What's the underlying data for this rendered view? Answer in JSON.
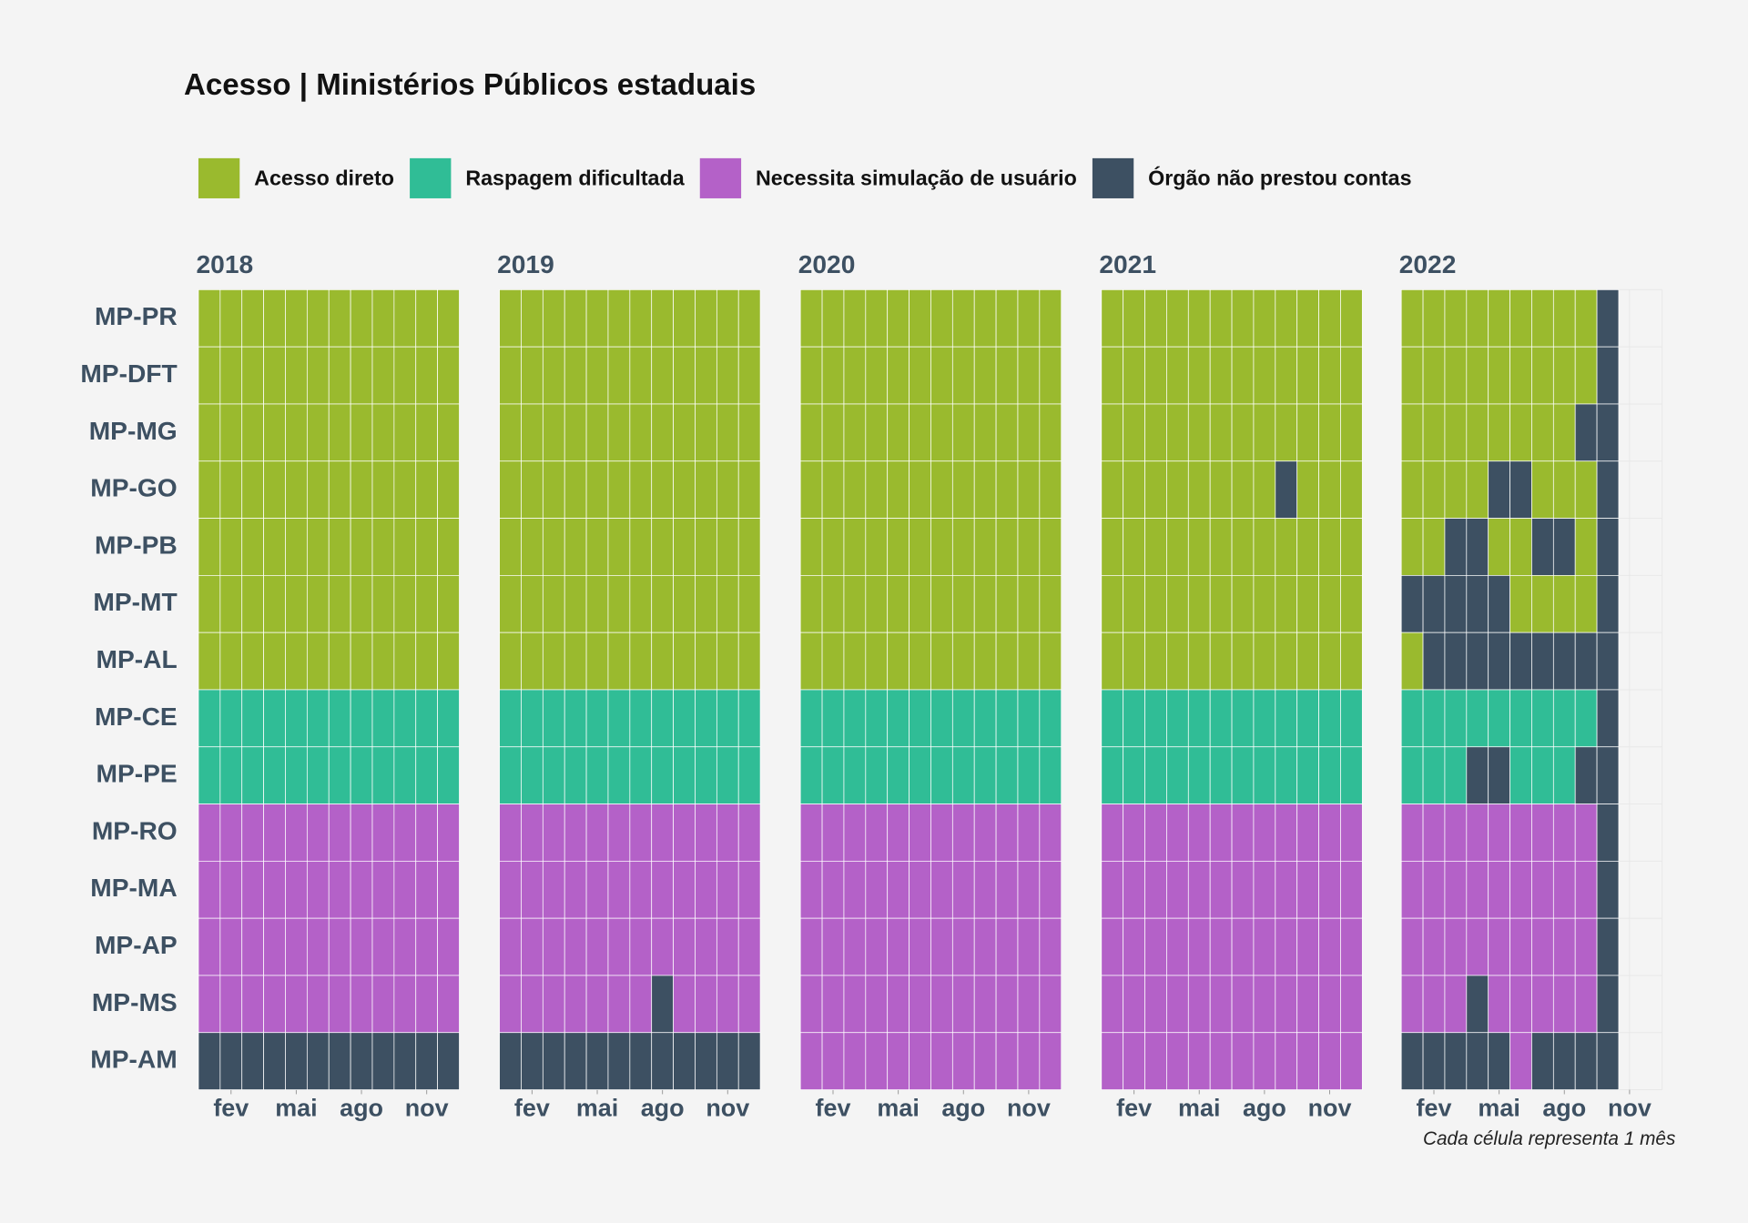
{
  "chart_data": {
    "type": "heatmap",
    "title": "Acesso | Ministérios Públicos estaduais",
    "caption": "Cada célula representa 1 mês",
    "legend": [
      {
        "name": "Acesso direto",
        "color": "#9aba2e"
      },
      {
        "name": "Raspagem dificultada",
        "color": "#30bd96"
      },
      {
        "name": "Necessita simulação de usuário",
        "color": "#b461c8"
      },
      {
        "name": "Órgão não prestou contas",
        "color": "#3d5062"
      }
    ],
    "rows": [
      "MP-PR",
      "MP-DFT",
      "MP-MG",
      "MP-GO",
      "MP-PB",
      "MP-MT",
      "MP-AL",
      "MP-CE",
      "MP-PE",
      "MP-RO",
      "MP-MA",
      "MP-AP",
      "MP-MS",
      "MP-AM"
    ],
    "xlim": [
      0.5,
      12.5
    ],
    "xticks": [
      {
        "value": 2,
        "label": "fev"
      },
      {
        "value": 5,
        "label": "mai"
      },
      {
        "value": 8,
        "label": "ago"
      },
      {
        "value": 11,
        "label": "nov"
      }
    ],
    "facets": [
      {
        "name": "2018",
        "values": [
          [
            0,
            0,
            0,
            0,
            0,
            0,
            0,
            0,
            0,
            0,
            0,
            0
          ],
          [
            0,
            0,
            0,
            0,
            0,
            0,
            0,
            0,
            0,
            0,
            0,
            0
          ],
          [
            0,
            0,
            0,
            0,
            0,
            0,
            0,
            0,
            0,
            0,
            0,
            0
          ],
          [
            0,
            0,
            0,
            0,
            0,
            0,
            0,
            0,
            0,
            0,
            0,
            0
          ],
          [
            0,
            0,
            0,
            0,
            0,
            0,
            0,
            0,
            0,
            0,
            0,
            0
          ],
          [
            0,
            0,
            0,
            0,
            0,
            0,
            0,
            0,
            0,
            0,
            0,
            0
          ],
          [
            0,
            0,
            0,
            0,
            0,
            0,
            0,
            0,
            0,
            0,
            0,
            0
          ],
          [
            1,
            1,
            1,
            1,
            1,
            1,
            1,
            1,
            1,
            1,
            1,
            1
          ],
          [
            1,
            1,
            1,
            1,
            1,
            1,
            1,
            1,
            1,
            1,
            1,
            1
          ],
          [
            2,
            2,
            2,
            2,
            2,
            2,
            2,
            2,
            2,
            2,
            2,
            2
          ],
          [
            2,
            2,
            2,
            2,
            2,
            2,
            2,
            2,
            2,
            2,
            2,
            2
          ],
          [
            2,
            2,
            2,
            2,
            2,
            2,
            2,
            2,
            2,
            2,
            2,
            2
          ],
          [
            2,
            2,
            2,
            2,
            2,
            2,
            2,
            2,
            2,
            2,
            2,
            2
          ],
          [
            3,
            3,
            3,
            3,
            3,
            3,
            3,
            3,
            3,
            3,
            3,
            3
          ]
        ]
      },
      {
        "name": "2019",
        "values": [
          [
            0,
            0,
            0,
            0,
            0,
            0,
            0,
            0,
            0,
            0,
            0,
            0
          ],
          [
            0,
            0,
            0,
            0,
            0,
            0,
            0,
            0,
            0,
            0,
            0,
            0
          ],
          [
            0,
            0,
            0,
            0,
            0,
            0,
            0,
            0,
            0,
            0,
            0,
            0
          ],
          [
            0,
            0,
            0,
            0,
            0,
            0,
            0,
            0,
            0,
            0,
            0,
            0
          ],
          [
            0,
            0,
            0,
            0,
            0,
            0,
            0,
            0,
            0,
            0,
            0,
            0
          ],
          [
            0,
            0,
            0,
            0,
            0,
            0,
            0,
            0,
            0,
            0,
            0,
            0
          ],
          [
            0,
            0,
            0,
            0,
            0,
            0,
            0,
            0,
            0,
            0,
            0,
            0
          ],
          [
            1,
            1,
            1,
            1,
            1,
            1,
            1,
            1,
            1,
            1,
            1,
            1
          ],
          [
            1,
            1,
            1,
            1,
            1,
            1,
            1,
            1,
            1,
            1,
            1,
            1
          ],
          [
            2,
            2,
            2,
            2,
            2,
            2,
            2,
            2,
            2,
            2,
            2,
            2
          ],
          [
            2,
            2,
            2,
            2,
            2,
            2,
            2,
            2,
            2,
            2,
            2,
            2
          ],
          [
            2,
            2,
            2,
            2,
            2,
            2,
            2,
            2,
            2,
            2,
            2,
            2
          ],
          [
            2,
            2,
            2,
            2,
            2,
            2,
            2,
            3,
            2,
            2,
            2,
            2
          ],
          [
            3,
            3,
            3,
            3,
            3,
            3,
            3,
            3,
            3,
            3,
            3,
            3
          ]
        ]
      },
      {
        "name": "2020",
        "values": [
          [
            0,
            0,
            0,
            0,
            0,
            0,
            0,
            0,
            0,
            0,
            0,
            0
          ],
          [
            0,
            0,
            0,
            0,
            0,
            0,
            0,
            0,
            0,
            0,
            0,
            0
          ],
          [
            0,
            0,
            0,
            0,
            0,
            0,
            0,
            0,
            0,
            0,
            0,
            0
          ],
          [
            0,
            0,
            0,
            0,
            0,
            0,
            0,
            0,
            0,
            0,
            0,
            0
          ],
          [
            0,
            0,
            0,
            0,
            0,
            0,
            0,
            0,
            0,
            0,
            0,
            0
          ],
          [
            0,
            0,
            0,
            0,
            0,
            0,
            0,
            0,
            0,
            0,
            0,
            0
          ],
          [
            0,
            0,
            0,
            0,
            0,
            0,
            0,
            0,
            0,
            0,
            0,
            0
          ],
          [
            1,
            1,
            1,
            1,
            1,
            1,
            1,
            1,
            1,
            1,
            1,
            1
          ],
          [
            1,
            1,
            1,
            1,
            1,
            1,
            1,
            1,
            1,
            1,
            1,
            1
          ],
          [
            2,
            2,
            2,
            2,
            2,
            2,
            2,
            2,
            2,
            2,
            2,
            2
          ],
          [
            2,
            2,
            2,
            2,
            2,
            2,
            2,
            2,
            2,
            2,
            2,
            2
          ],
          [
            2,
            2,
            2,
            2,
            2,
            2,
            2,
            2,
            2,
            2,
            2,
            2
          ],
          [
            2,
            2,
            2,
            2,
            2,
            2,
            2,
            2,
            2,
            2,
            2,
            2
          ],
          [
            2,
            2,
            2,
            2,
            2,
            2,
            2,
            2,
            2,
            2,
            2,
            2
          ]
        ]
      },
      {
        "name": "2021",
        "values": [
          [
            0,
            0,
            0,
            0,
            0,
            0,
            0,
            0,
            0,
            0,
            0,
            0
          ],
          [
            0,
            0,
            0,
            0,
            0,
            0,
            0,
            0,
            0,
            0,
            0,
            0
          ],
          [
            0,
            0,
            0,
            0,
            0,
            0,
            0,
            0,
            0,
            0,
            0,
            0
          ],
          [
            0,
            0,
            0,
            0,
            0,
            0,
            0,
            0,
            3,
            0,
            0,
            0
          ],
          [
            0,
            0,
            0,
            0,
            0,
            0,
            0,
            0,
            0,
            0,
            0,
            0
          ],
          [
            0,
            0,
            0,
            0,
            0,
            0,
            0,
            0,
            0,
            0,
            0,
            0
          ],
          [
            0,
            0,
            0,
            0,
            0,
            0,
            0,
            0,
            0,
            0,
            0,
            0
          ],
          [
            1,
            1,
            1,
            1,
            1,
            1,
            1,
            1,
            1,
            1,
            1,
            1
          ],
          [
            1,
            1,
            1,
            1,
            1,
            1,
            1,
            1,
            1,
            1,
            1,
            1
          ],
          [
            2,
            2,
            2,
            2,
            2,
            2,
            2,
            2,
            2,
            2,
            2,
            2
          ],
          [
            2,
            2,
            2,
            2,
            2,
            2,
            2,
            2,
            2,
            2,
            2,
            2
          ],
          [
            2,
            2,
            2,
            2,
            2,
            2,
            2,
            2,
            2,
            2,
            2,
            2
          ],
          [
            2,
            2,
            2,
            2,
            2,
            2,
            2,
            2,
            2,
            2,
            2,
            2
          ],
          [
            2,
            2,
            2,
            2,
            2,
            2,
            2,
            2,
            2,
            2,
            2,
            2
          ]
        ]
      },
      {
        "name": "2022",
        "values": [
          [
            0,
            0,
            0,
            0,
            0,
            0,
            0,
            0,
            0,
            3,
            null,
            null
          ],
          [
            0,
            0,
            0,
            0,
            0,
            0,
            0,
            0,
            0,
            3,
            null,
            null
          ],
          [
            0,
            0,
            0,
            0,
            0,
            0,
            0,
            0,
            3,
            3,
            null,
            null
          ],
          [
            0,
            0,
            0,
            0,
            3,
            3,
            0,
            0,
            0,
            3,
            null,
            null
          ],
          [
            0,
            0,
            3,
            3,
            0,
            0,
            3,
            3,
            0,
            3,
            null,
            null
          ],
          [
            3,
            3,
            3,
            3,
            3,
            0,
            0,
            0,
            0,
            3,
            null,
            null
          ],
          [
            0,
            3,
            3,
            3,
            3,
            3,
            3,
            3,
            3,
            3,
            null,
            null
          ],
          [
            1,
            1,
            1,
            1,
            1,
            1,
            1,
            1,
            1,
            3,
            null,
            null
          ],
          [
            1,
            1,
            1,
            3,
            3,
            1,
            1,
            1,
            3,
            3,
            null,
            null
          ],
          [
            2,
            2,
            2,
            2,
            2,
            2,
            2,
            2,
            2,
            3,
            null,
            null
          ],
          [
            2,
            2,
            2,
            2,
            2,
            2,
            2,
            2,
            2,
            3,
            null,
            null
          ],
          [
            2,
            2,
            2,
            2,
            2,
            2,
            2,
            2,
            2,
            3,
            null,
            null
          ],
          [
            2,
            2,
            2,
            3,
            2,
            2,
            2,
            2,
            2,
            3,
            null,
            null
          ],
          [
            3,
            3,
            3,
            3,
            3,
            2,
            3,
            3,
            3,
            3,
            null,
            null
          ]
        ]
      }
    ]
  }
}
